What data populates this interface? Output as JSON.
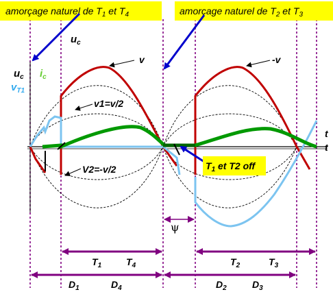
{
  "banners": {
    "left": {
      "prefix": "amorçage naturel de T",
      "sub1": "1",
      "mid": " et T",
      "sub2": "4"
    },
    "right": {
      "prefix": "amorçage naturel de T",
      "sub1": "2",
      "mid": " et T",
      "sub2": "3"
    }
  },
  "labels": {
    "uc_top": {
      "main": "u",
      "sub": "c"
    },
    "uc_left": {
      "main": "u",
      "sub": "c"
    },
    "vt1": {
      "main": "v",
      "sub": "T1"
    },
    "ic": {
      "main": "i",
      "sub": "c"
    },
    "v": "v",
    "minus_v": "-v",
    "v1": "v1=v/2",
    "v2": "V2=-v/2",
    "t_axis_1": "t",
    "t_axis_2": "t",
    "psi": "ψ"
  },
  "callout": {
    "prefix": "T",
    "sub": "1",
    "rest": " et T2 off"
  },
  "intervals": {
    "top": [
      {
        "a": "T",
        "a_sub": "1",
        "b": "T",
        "b_sub": "4"
      },
      {
        "a": "T",
        "a_sub": "2",
        "b": "T",
        "b_sub": "3"
      }
    ],
    "bottom": [
      {
        "a": "D",
        "a_sub": "1",
        "b": "D",
        "b_sub": "4"
      },
      {
        "a": "D",
        "a_sub": "2",
        "b": "D",
        "b_sub": "3"
      }
    ]
  },
  "colors": {
    "banner": "#ffff00",
    "voltage": "#c00000",
    "current": "#009900",
    "vt1": "#66bbee",
    "arrow": "#0000cc",
    "interval": "#800080",
    "dashed_guides": "#800080",
    "ic_label": "#66cc33",
    "vt1_label": "#33aaee"
  }
}
